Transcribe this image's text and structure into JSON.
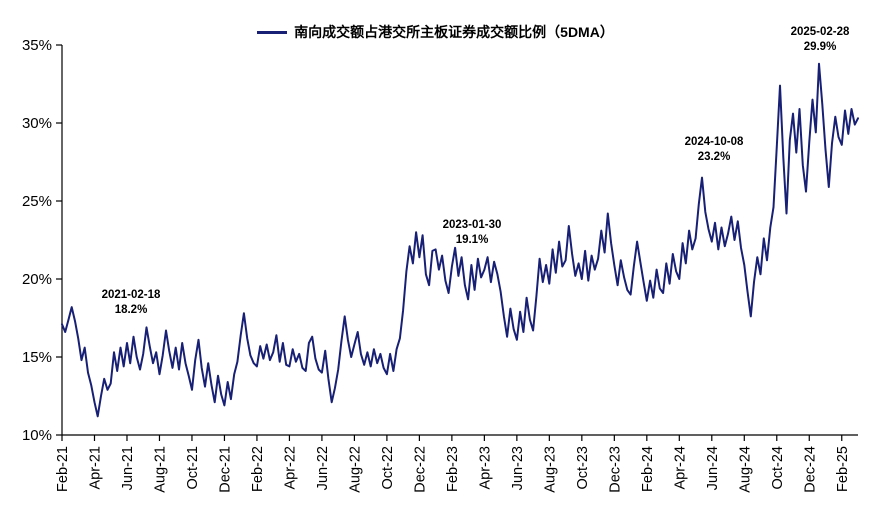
{
  "legend": {
    "label": "南向成交额占港交所主板证券成交额比例（5DMA）"
  },
  "colors": {
    "line": "#182075",
    "axis": "#000000",
    "text": "#000000"
  },
  "chart_data": {
    "type": "line",
    "title": "南向成交额占港交所主板证券成交额比例（5DMA）",
    "xlabel": "",
    "ylabel": "",
    "ylim": [
      10,
      35
    ],
    "y_ticks": [
      10,
      15,
      20,
      25,
      30,
      35
    ],
    "y_tick_format": "percent",
    "legend_position": "top-center",
    "grid": false,
    "points_per_month": 5,
    "x_tick_labels": [
      "Feb-21",
      "Apr-21",
      "Jun-21",
      "Aug-21",
      "Oct-21",
      "Dec-21",
      "Feb-22",
      "Apr-22",
      "Jun-22",
      "Aug-22",
      "Oct-22",
      "Dec-22",
      "Feb-23",
      "Apr-23",
      "Jun-23",
      "Aug-23",
      "Oct-23",
      "Dec-23",
      "Feb-24",
      "Apr-24",
      "Jun-24",
      "Aug-24",
      "Oct-24",
      "Dec-24",
      "Feb-25"
    ],
    "values": [
      17.1,
      16.6,
      17.4,
      18.2,
      17.3,
      16.2,
      14.8,
      15.6,
      14.0,
      13.2,
      12.1,
      11.2,
      12.5,
      13.6,
      12.9,
      13.3,
      15.3,
      14.1,
      15.6,
      14.4,
      15.9,
      14.6,
      16.3,
      15.0,
      14.2,
      15.2,
      16.9,
      15.7,
      14.6,
      15.3,
      13.9,
      15.1,
      16.7,
      15.4,
      14.3,
      15.6,
      14.2,
      15.9,
      14.6,
      13.8,
      12.9,
      14.8,
      16.1,
      14.3,
      13.1,
      14.6,
      13.2,
      12.1,
      13.8,
      12.6,
      11.9,
      13.4,
      12.3,
      13.9,
      14.7,
      16.4,
      17.8,
      16.2,
      15.1,
      14.6,
      14.4,
      15.7,
      14.9,
      15.8,
      14.8,
      15.3,
      16.4,
      14.7,
      15.9,
      14.5,
      14.4,
      15.5,
      14.7,
      15.2,
      14.3,
      14.1,
      15.9,
      16.3,
      14.9,
      14.2,
      14.0,
      15.4,
      13.6,
      12.1,
      13.0,
      14.2,
      16.0,
      17.6,
      16.1,
      15.0,
      15.8,
      16.6,
      15.2,
      14.5,
      15.3,
      14.4,
      15.5,
      14.6,
      15.2,
      14.3,
      13.9,
      15.2,
      14.1,
      15.5,
      16.2,
      18.0,
      20.5,
      22.1,
      21.0,
      23.0,
      21.4,
      22.8,
      20.3,
      19.6,
      21.8,
      21.9,
      20.6,
      21.5,
      19.9,
      19.1,
      20.8,
      22.0,
      20.2,
      21.4,
      19.6,
      18.7,
      20.9,
      19.3,
      21.3,
      20.1,
      20.6,
      21.4,
      19.8,
      21.1,
      20.3,
      19.2,
      17.6,
      16.3,
      18.1,
      16.8,
      16.1,
      17.9,
      16.6,
      18.8,
      17.4,
      16.7,
      18.9,
      21.3,
      19.8,
      20.9,
      19.7,
      21.9,
      20.4,
      22.4,
      20.8,
      21.2,
      23.4,
      21.6,
      20.2,
      21.0,
      20.0,
      21.8,
      19.9,
      21.5,
      20.6,
      21.3,
      23.1,
      21.7,
      24.2,
      22.3,
      20.9,
      19.6,
      21.2,
      20.1,
      19.3,
      19.0,
      20.8,
      22.4,
      21.1,
      19.8,
      18.6,
      19.9,
      18.8,
      20.6,
      19.4,
      19.1,
      21.0,
      19.7,
      21.6,
      20.5,
      20.0,
      22.3,
      21.0,
      23.1,
      21.9,
      22.6,
      24.8,
      26.5,
      24.3,
      23.2,
      22.4,
      23.6,
      21.9,
      23.3,
      22.1,
      22.9,
      24.0,
      22.5,
      23.7,
      22.0,
      20.9,
      19.2,
      17.6,
      19.8,
      21.4,
      20.3,
      22.6,
      21.2,
      23.3,
      24.6,
      28.5,
      32.4,
      27.8,
      24.2,
      28.9,
      30.6,
      28.1,
      30.9,
      27.3,
      25.6,
      28.8,
      31.5,
      29.4,
      33.8,
      31.2,
      28.3,
      25.9,
      28.7,
      30.4,
      29.1,
      28.6,
      30.8,
      29.3,
      30.9,
      29.9,
      30.3
    ],
    "annotations": [
      {
        "date": "2021-02-18",
        "value": "18.2%"
      },
      {
        "date": "2023-01-30",
        "value": "19.1%"
      },
      {
        "date": "2024-10-08",
        "value": "23.2%"
      },
      {
        "date": "2025-02-28",
        "value": "29.9%"
      }
    ]
  }
}
